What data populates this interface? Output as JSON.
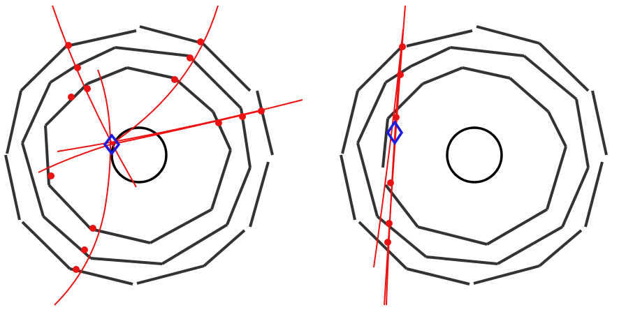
{
  "figure": {
    "panels": [
      {
        "id": "left",
        "description_visible": false,
        "layers_count": 3,
        "colors": {
          "detector": "#333333",
          "track": "#ee1111",
          "hit": "#ee1111",
          "vertex": "#1a1ae6",
          "beampipe": "#000000"
        }
      },
      {
        "id": "right",
        "description_visible": false,
        "layers_count": 3,
        "colors": {
          "detector": "#333333",
          "track": "#ee1111",
          "hit": "#ee1111",
          "vertex": "#1a1ae6",
          "beampipe": "#000000"
        }
      }
    ]
  }
}
